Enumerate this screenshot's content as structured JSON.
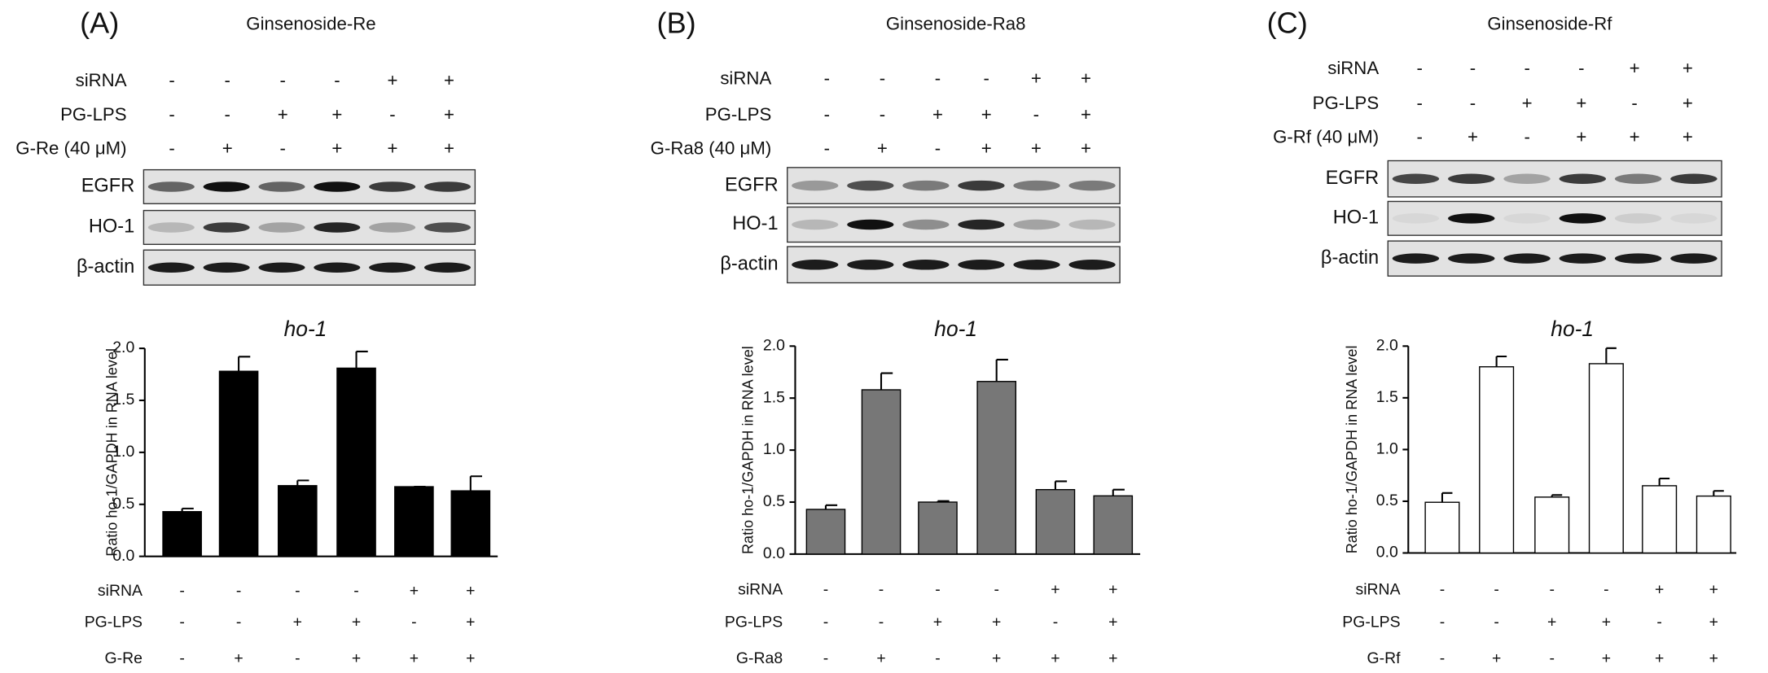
{
  "chart_data": [
    {
      "type": "bar",
      "panel": "(A)",
      "compound": "Ginsenoside-Re",
      "blot_conditions": [
        {
          "name": "siRNA",
          "values": [
            "-",
            "-",
            "-",
            "-",
            "+",
            "+"
          ]
        },
        {
          "name": "PG-LPS",
          "values": [
            "-",
            "-",
            "+",
            "+",
            "-",
            "+"
          ]
        },
        {
          "name": "G-Re (40 μM)",
          "values": [
            "-",
            "+",
            "-",
            "+",
            "+",
            "+"
          ]
        }
      ],
      "blot_rows": [
        "EGFR",
        "HO-1",
        "β-actin"
      ],
      "title": "ho-1",
      "y_label": "Ratio ho-1/GAPDH in RNA level",
      "categories": [
        null,
        null,
        null,
        null,
        null,
        null
      ],
      "values": [
        0.43,
        1.78,
        0.68,
        1.81,
        0.67,
        0.63
      ],
      "error": [
        0.03,
        0.14,
        0.05,
        0.16,
        0.0,
        0.14
      ],
      "color": "#000000",
      "ylim": [
        0,
        2
      ],
      "yticks": [
        {
          "value": 0,
          "label": "0.0"
        },
        {
          "value": 0.5,
          "label": "0.5"
        },
        {
          "value": 1,
          "label": "1.0"
        },
        {
          "value": 1.5,
          "label": "1.5"
        },
        {
          "value": 2,
          "label": "2.0"
        }
      ],
      "conditions": [
        {
          "name": "siRNA",
          "values": [
            "-",
            "-",
            "-",
            "-",
            "+",
            "+"
          ]
        },
        {
          "name": "PG-LPS",
          "values": [
            "-",
            "-",
            "+",
            "+",
            "-",
            "+"
          ]
        },
        {
          "name": "G-Re",
          "values": [
            "-",
            "+",
            "-",
            "+",
            "+",
            "+"
          ]
        }
      ]
    },
    {
      "type": "bar",
      "panel": "(B)",
      "compound": "Ginsenoside-Ra8",
      "blot_conditions": [
        {
          "name": "siRNA",
          "values": [
            "-",
            "-",
            "-",
            "-",
            "+",
            "+"
          ]
        },
        {
          "name": "PG-LPS",
          "values": [
            "-",
            "-",
            "+",
            "+",
            "-",
            "+"
          ]
        },
        {
          "name": "G-Ra8 (40 μM)",
          "values": [
            "-",
            "+",
            "-",
            "+",
            "+",
            "+"
          ]
        }
      ],
      "blot_rows": [
        "EGFR",
        "HO-1",
        "β-actin"
      ],
      "title": "ho-1",
      "y_label": "Ratio ho-1/GAPDH in RNA level",
      "categories": [
        null,
        null,
        null,
        null,
        null,
        null
      ],
      "values": [
        0.43,
        1.58,
        0.5,
        1.66,
        0.62,
        0.56
      ],
      "error": [
        0.04,
        0.16,
        0.01,
        0.21,
        0.08,
        0.06
      ],
      "color": "#777777",
      "ylim": [
        0,
        2
      ],
      "yticks": [
        {
          "value": 0,
          "label": "0.0"
        },
        {
          "value": 0.5,
          "label": "0.5"
        },
        {
          "value": 1,
          "label": "1.0"
        },
        {
          "value": 1.5,
          "label": "1.5"
        },
        {
          "value": 2,
          "label": "2.0"
        }
      ],
      "conditions": [
        {
          "name": "siRNA",
          "values": [
            "-",
            "-",
            "-",
            "-",
            "+",
            "+"
          ]
        },
        {
          "name": "PG-LPS",
          "values": [
            "-",
            "-",
            "+",
            "+",
            "-",
            "+"
          ]
        },
        {
          "name": "G-Ra8",
          "values": [
            "-",
            "+",
            "-",
            "+",
            "+",
            "+"
          ]
        }
      ]
    },
    {
      "type": "bar",
      "panel": "(C)",
      "compound": "Ginsenoside-Rf",
      "blot_conditions": [
        {
          "name": "siRNA",
          "values": [
            "-",
            "-",
            "-",
            "-",
            "+",
            "+"
          ]
        },
        {
          "name": "PG-LPS",
          "values": [
            "-",
            "-",
            "+",
            "+",
            "-",
            "+"
          ]
        },
        {
          "name": "G-Rf (40 μM)",
          "values": [
            "-",
            "+",
            "-",
            "+",
            "+",
            "+"
          ]
        }
      ],
      "blot_rows": [
        "EGFR",
        "HO-1",
        "β-actin"
      ],
      "title": "ho-1",
      "y_label": "Ratio ho-1/GAPDH in RNA level",
      "categories": [
        null,
        null,
        null,
        null,
        null,
        null
      ],
      "values": [
        0.49,
        1.8,
        0.54,
        1.83,
        0.65,
        0.55
      ],
      "error": [
        0.09,
        0.1,
        0.02,
        0.15,
        0.07,
        0.05
      ],
      "color": "#ffffff",
      "ylim": [
        0,
        2
      ],
      "yticks": [
        {
          "value": 0,
          "label": "0.0"
        },
        {
          "value": 0.5,
          "label": "0.5"
        },
        {
          "value": 1,
          "label": "1.0"
        },
        {
          "value": 1.5,
          "label": "1.5"
        },
        {
          "value": 2,
          "label": "2.0"
        }
      ],
      "conditions": [
        {
          "name": "siRNA",
          "values": [
            "-",
            "-",
            "-",
            "-",
            "+",
            "+"
          ]
        },
        {
          "name": "PG-LPS",
          "values": [
            "-",
            "-",
            "+",
            "+",
            "-",
            "+"
          ]
        },
        {
          "name": "G-Rf",
          "values": [
            "-",
            "+",
            "-",
            "+",
            "+",
            "+"
          ]
        }
      ]
    }
  ]
}
